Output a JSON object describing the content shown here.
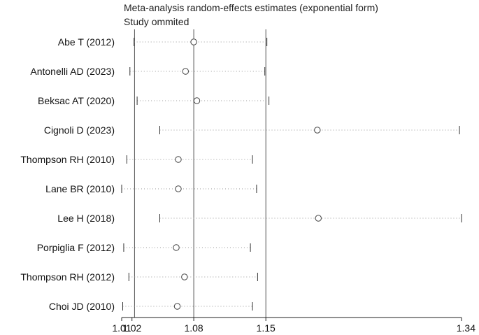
{
  "chart_data": {
    "type": "scatter",
    "title": "Meta-analysis random-effects estimates (exponential form)",
    "subtitle": "Study ommited",
    "x_ticks": [
      {
        "value": 1.01,
        "label": "1.01"
      },
      {
        "value": 1.02,
        "label": "1.02"
      },
      {
        "value": 1.08,
        "label": "1.08"
      },
      {
        "value": 1.15,
        "label": "1.15"
      },
      {
        "value": 1.34,
        "label": "1.34"
      }
    ],
    "xlim": [
      1.01,
      1.34
    ],
    "reference_lines": [
      1.0225,
      1.08,
      1.15
    ],
    "studies": [
      {
        "label": "Abe T (2012)",
        "estimate": 1.08,
        "lower": 1.022,
        "upper": 1.151
      },
      {
        "label": "Antonelli AD (2023)",
        "estimate": 1.072,
        "lower": 1.018,
        "upper": 1.149
      },
      {
        "label": "Beksac AT (2020)",
        "estimate": 1.083,
        "lower": 1.025,
        "upper": 1.153
      },
      {
        "label": "Cignoli D (2023)",
        "estimate": 1.2,
        "lower": 1.047,
        "upper": 1.338
      },
      {
        "label": "Thompson RH (2010)",
        "estimate": 1.065,
        "lower": 1.015,
        "upper": 1.137
      },
      {
        "label": "Lane BR (2010)",
        "estimate": 1.065,
        "lower": 1.01,
        "upper": 1.141
      },
      {
        "label": "Lee H (2018)",
        "estimate": 1.201,
        "lower": 1.047,
        "upper": 1.34
      },
      {
        "label": "Porpiglia F (2012)",
        "estimate": 1.063,
        "lower": 1.012,
        "upper": 1.135
      },
      {
        "label": "Thompson RH (2012)",
        "estimate": 1.071,
        "lower": 1.017,
        "upper": 1.142
      },
      {
        "label": "Choi JD (2010)",
        "estimate": 1.064,
        "lower": 1.011,
        "upper": 1.137
      }
    ]
  }
}
